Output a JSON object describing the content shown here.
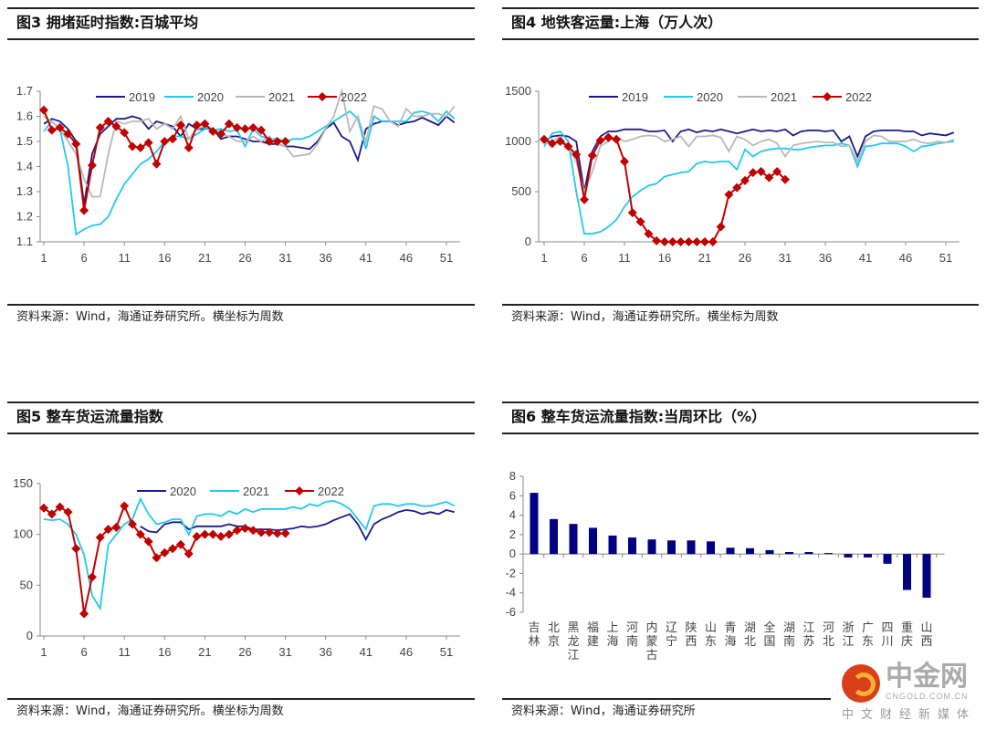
{
  "panels": [
    {
      "title": "图3  拥堵延时指数:百城平均",
      "source": "资料来源：Wind，海通证券研究所。横坐标为周数"
    },
    {
      "title": "图4  地铁客运量:上海（万人次）",
      "source": "资料来源：Wind，海通证券研究所。横坐标为周数"
    },
    {
      "title": "图5  整车货运流量指数",
      "source": "资料来源：Wind，海通证券研究所。横坐标为周数"
    },
    {
      "title": "图6  整车货运流量指数:当周环比（%）",
      "source": "资料来源：Wind，海通证券研究所"
    }
  ],
  "watermark": {
    "name": "中金网",
    "site": "CNGOLD.COM.CN",
    "tagline": "中文财经新媒体"
  },
  "chart_data": [
    {
      "type": "line",
      "title": "拥堵延时指数:百城平均",
      "xlabel": "",
      "ylabel": "",
      "ylim": [
        1.1,
        1.7
      ],
      "yticks": [
        "1.1",
        "1.2",
        "1.3",
        "1.4",
        "1.5",
        "1.6",
        "1.7"
      ],
      "xticks": [
        "1",
        "6",
        "11",
        "16",
        "21",
        "26",
        "31",
        "36",
        "41",
        "46",
        "51"
      ],
      "legend": "top",
      "colors": {
        "2019": "#1a1a8c",
        "2020": "#22c8f0",
        "2021": "#b8b8b8",
        "2022": "#c00000"
      },
      "series": [
        {
          "name": "2019",
          "values": [
            1.57,
            1.59,
            1.58,
            1.55,
            1.5,
            1.25,
            1.45,
            1.53,
            1.56,
            1.59,
            1.59,
            1.6,
            1.59,
            1.55,
            1.58,
            1.57,
            1.56,
            1.52,
            1.57,
            1.55,
            1.55,
            1.55,
            1.51,
            1.52,
            1.52,
            1.51,
            1.5,
            1.5,
            1.49,
            1.49,
            1.48,
            1.48,
            1.475,
            1.47,
            1.5,
            1.55,
            1.575,
            1.52,
            1.5,
            1.425,
            1.55,
            1.57,
            1.58,
            1.58,
            1.565,
            1.575,
            1.58,
            1.595,
            1.58,
            1.565,
            1.6,
            1.575
          ]
        },
        {
          "name": "2020",
          "values": [
            1.54,
            1.58,
            1.55,
            1.4,
            1.13,
            1.15,
            1.165,
            1.17,
            1.2,
            1.27,
            1.33,
            1.37,
            1.41,
            1.43,
            1.46,
            1.5,
            1.52,
            1.52,
            1.51,
            1.53,
            1.55,
            1.545,
            1.55,
            1.54,
            1.545,
            1.48,
            1.55,
            1.52,
            1.51,
            1.51,
            1.5,
            1.51,
            1.51,
            1.52,
            1.54,
            1.56,
            1.58,
            1.6,
            1.62,
            1.59,
            1.47,
            1.6,
            1.58,
            1.58,
            1.58,
            1.58,
            1.615,
            1.62,
            1.61,
            1.58,
            1.62,
            1.59
          ]
        },
        {
          "name": "2021",
          "values": [
            1.6,
            1.58,
            1.55,
            1.5,
            1.45,
            1.35,
            1.28,
            1.28,
            1.45,
            1.58,
            1.57,
            1.58,
            1.58,
            1.59,
            1.55,
            1.57,
            1.55,
            1.6,
            1.51,
            1.55,
            1.56,
            1.55,
            1.53,
            1.52,
            1.5,
            1.5,
            1.52,
            1.5,
            1.52,
            1.49,
            1.48,
            1.44,
            1.445,
            1.45,
            1.49,
            1.55,
            1.6,
            1.7,
            1.54,
            1.6,
            1.5,
            1.64,
            1.63,
            1.58,
            1.56,
            1.63,
            1.6,
            1.6,
            1.61,
            1.61,
            1.6,
            1.64
          ]
        },
        {
          "name": "2022",
          "marker": "diamond",
          "values": [
            1.625,
            1.545,
            1.555,
            1.53,
            1.49,
            1.225,
            1.405,
            1.555,
            1.58,
            1.56,
            1.535,
            1.48,
            1.475,
            1.495,
            1.41,
            1.5,
            1.51,
            1.565,
            1.475,
            1.565,
            1.57,
            1.54,
            1.53,
            1.57,
            1.555,
            1.55,
            1.555,
            1.545,
            1.5,
            1.5,
            1.5
          ]
        }
      ]
    },
    {
      "type": "line",
      "title": "地铁客运量:上海（万人次）",
      "xlabel": "",
      "ylabel": "",
      "ylim": [
        0,
        1500
      ],
      "yticks": [
        "0",
        "500",
        "1000",
        "1500"
      ],
      "xticks": [
        "1",
        "6",
        "11",
        "16",
        "21",
        "26",
        "31",
        "36",
        "41",
        "46",
        "51"
      ],
      "legend": "top",
      "colors": {
        "2019": "#1a1a8c",
        "2020": "#22c8f0",
        "2021": "#b8b8b8",
        "2022": "#c00000"
      },
      "series": [
        {
          "name": "2019",
          "values": [
            1000,
            1050,
            1060,
            1050,
            1000,
            500,
            900,
            1050,
            1100,
            1100,
            1120,
            1120,
            1120,
            1100,
            1100,
            1110,
            1000,
            1100,
            1120,
            1090,
            1110,
            1100,
            1120,
            1100,
            1080,
            1100,
            1120,
            1100,
            1110,
            1100,
            1120,
            1060,
            1100,
            1110,
            1110,
            1100,
            1110,
            1000,
            1050,
            850,
            1050,
            1100,
            1110,
            1110,
            1110,
            1100,
            1100,
            1060,
            1080,
            1070,
            1060,
            1090
          ]
        },
        {
          "name": "2020",
          "values": [
            950,
            1080,
            1100,
            1000,
            500,
            80,
            80,
            100,
            150,
            220,
            350,
            450,
            510,
            560,
            580,
            650,
            670,
            690,
            700,
            780,
            800,
            790,
            800,
            800,
            720,
            920,
            850,
            900,
            920,
            930,
            930,
            920,
            920,
            940,
            950,
            960,
            960,
            980,
            960,
            750,
            950,
            960,
            980,
            980,
            980,
            950,
            900,
            950,
            960,
            980,
            990,
            1000
          ]
        },
        {
          "name": "2021",
          "values": [
            1000,
            1000,
            1050,
            950,
            800,
            500,
            700,
            950,
            1000,
            1050,
            1000,
            1020,
            1050,
            1060,
            1050,
            1000,
            1020,
            1050,
            950,
            1050,
            1050,
            1060,
            1040,
            900,
            1050,
            1020,
            960,
            1000,
            1020,
            980,
            850,
            960,
            980,
            990,
            1000,
            990,
            990,
            950,
            960,
            800,
            1000,
            1060,
            1050,
            1000,
            1000,
            1000,
            1020,
            990,
            980,
            1000,
            990,
            1020
          ]
        },
        {
          "name": "2022",
          "marker": "diamond",
          "values": [
            1020,
            980,
            1000,
            950,
            870,
            420,
            860,
            1010,
            1040,
            1020,
            800,
            290,
            200,
            80,
            10,
            0,
            0,
            0,
            0,
            0,
            0,
            0,
            150,
            470,
            540,
            610,
            690,
            700,
            640,
            700,
            620
          ]
        }
      ]
    },
    {
      "type": "line",
      "title": "整车货运流量指数",
      "xlabel": "",
      "ylabel": "",
      "ylim": [
        0,
        150
      ],
      "yticks": [
        "0",
        "50",
        "100",
        "150"
      ],
      "xticks": [
        "1",
        "6",
        "11",
        "16",
        "21",
        "26",
        "31",
        "36",
        "41",
        "46",
        "51"
      ],
      "legend": "top",
      "colors": {
        "2020": "#1a1a8c",
        "2021": "#22c8f0",
        "2022": "#c00000"
      },
      "series": [
        {
          "name": "2020",
          "values": [
            null,
            null,
            null,
            null,
            null,
            null,
            null,
            null,
            null,
            null,
            null,
            null,
            108,
            103,
            102,
            110,
            112,
            112,
            105,
            108,
            108,
            108,
            108,
            110,
            108,
            108,
            105,
            105,
            105,
            104,
            105,
            106,
            108,
            107,
            108,
            110,
            114,
            117,
            120,
            110,
            95,
            110,
            115,
            118,
            122,
            124,
            123,
            120,
            122,
            120,
            124,
            122
          ]
        },
        {
          "name": "2021",
          "values": [
            115,
            114,
            115,
            110,
            100,
            80,
            40,
            27,
            90,
            100,
            110,
            115,
            135,
            120,
            110,
            112,
            115,
            115,
            100,
            118,
            120,
            120,
            118,
            123,
            120,
            125,
            122,
            125,
            125,
            125,
            125,
            127,
            125,
            130,
            128,
            132,
            133,
            130,
            125,
            115,
            105,
            128,
            130,
            130,
            128,
            130,
            130,
            128,
            128,
            130,
            132,
            128
          ]
        },
        {
          "name": "2022",
          "marker": "diamond",
          "values": [
            126,
            120,
            127,
            122,
            86,
            22,
            58,
            97,
            105,
            107,
            128,
            110,
            100,
            93,
            77,
            82,
            86,
            90,
            81,
            98,
            100,
            100,
            98,
            100,
            104,
            106,
            104,
            102,
            102,
            101,
            101
          ]
        }
      ]
    },
    {
      "type": "bar",
      "title": "整车货运流量指数:当周环比（%）",
      "xlabel": "",
      "ylabel": "",
      "ylim": [
        -6,
        8
      ],
      "yticks": [
        "-6",
        "-4",
        "-2",
        "0",
        "2",
        "4",
        "6",
        "8"
      ],
      "color": "#000080",
      "categories": [
        "吉林",
        "北京",
        "黑龙江",
        "福建",
        "上海",
        "河南",
        "内蒙古",
        "辽宁",
        "陕西",
        "山东",
        "青海",
        "湖北",
        "全国",
        "湖南",
        "江苏",
        "河北",
        "浙江",
        "广东",
        "四川",
        "重庆",
        "山西"
      ],
      "values": [
        6.3,
        3.6,
        3.1,
        2.7,
        1.9,
        1.7,
        1.5,
        1.4,
        1.4,
        1.3,
        0.65,
        0.6,
        0.4,
        0.2,
        0.2,
        0.1,
        -0.35,
        -0.35,
        -1.0,
        -3.7,
        -4.5
      ]
    }
  ]
}
